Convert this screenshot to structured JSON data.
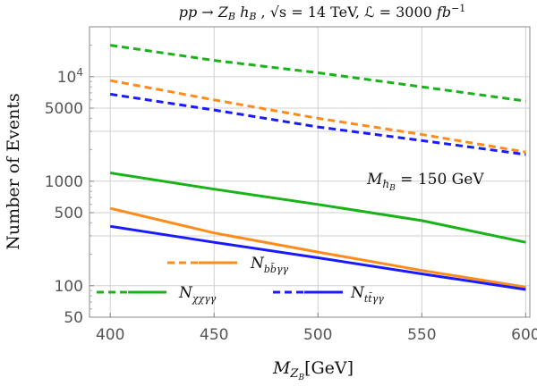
{
  "chart_data": {
    "type": "line",
    "title": "pp → Z_B h_B , √s = 14 TeV, ℒ = 3000 fb⁻¹",
    "title_parts": {
      "process": "pp → Z",
      "process_sub": "B",
      "process_h": " h",
      "process_h_sub": "B",
      "sqrt_s": " , √s = 14 TeV, ",
      "lumi": "ℒ = 3000 ",
      "fb": "fb",
      "fb_sup": "−1"
    },
    "xlabel": "M_{Z_B}[GeV]",
    "xlabel_parts": {
      "m": "M",
      "z": "Z",
      "b": "B",
      "unit": "[GeV]"
    },
    "ylabel": "Number of Events",
    "yscale": "log",
    "xlim": [
      390,
      602
    ],
    "ylim": [
      50,
      30000
    ],
    "grid": true,
    "x_ticks": [
      400,
      450,
      500,
      550,
      600
    ],
    "x_tick_labels": [
      "400",
      "450",
      "500",
      "550",
      "600"
    ],
    "y_ticks": [
      50,
      100,
      500,
      1000,
      5000,
      10000
    ],
    "y_tick_labels": [
      "50",
      "100",
      "500",
      "1000",
      "5000",
      "10^4"
    ],
    "y_minor_grid": [
      300,
      3000
    ],
    "annotation": {
      "text": "M_{h_B} = 150 GeV",
      "m": "M",
      "h": "h",
      "b": "B",
      "rest": " = 150 GeV"
    },
    "x": [
      400,
      450,
      500,
      550,
      600
    ],
    "series": [
      {
        "name": "N_{χχγγ} (dashed)",
        "color": "#19b319",
        "dash": true,
        "values": [
          20000,
          14300,
          10900,
          8000,
          5850
        ]
      },
      {
        "name": "N_{bb̄γγ} (dashed)",
        "color": "#ff8c1a",
        "dash": true,
        "values": [
          9200,
          6000,
          4000,
          2800,
          1900
        ]
      },
      {
        "name": "N_{tt̄γγ} (dashed)",
        "color": "#1a1aff",
        "dash": true,
        "values": [
          6800,
          4800,
          3300,
          2450,
          1800
        ]
      },
      {
        "name": "N_{χχγγ} (solid)",
        "color": "#19b319",
        "dash": false,
        "values": [
          1200,
          840,
          600,
          420,
          260
        ]
      },
      {
        "name": "N_{bb̄γγ} (solid)",
        "color": "#ff8c1a",
        "dash": false,
        "values": [
          550,
          320,
          210,
          140,
          97
        ]
      },
      {
        "name": "N_{tt̄γγ} (solid)",
        "color": "#1a1aff",
        "dash": false,
        "values": [
          370,
          260,
          185,
          130,
          92
        ]
      }
    ],
    "legend": [
      {
        "label": "N_{bb̄γγ}",
        "n": "N",
        "sub": "bb̄γγ",
        "color": "#ff8c1a"
      },
      {
        "label": "N_{χχγγ}",
        "n": "N",
        "sub": "χχγγ",
        "color": "#19b319"
      },
      {
        "label": "N_{tt̄γγ}",
        "n": "N",
        "sub": "tt̄γγ",
        "color": "#1a1aff"
      }
    ],
    "legend_position": "bottom-left"
  }
}
